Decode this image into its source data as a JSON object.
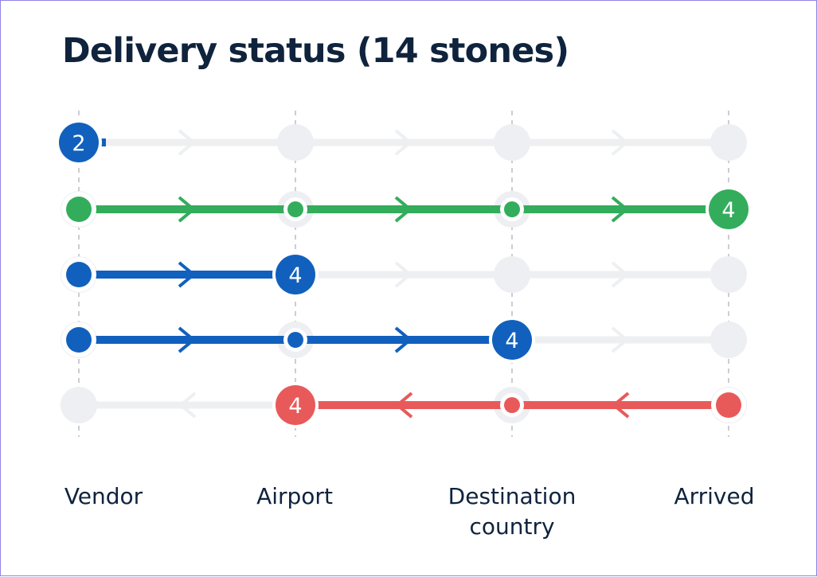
{
  "title": "Delivery status (14 stones)",
  "chart_data": {
    "type": "flow-status",
    "title": "Delivery status (14 stones)",
    "stages": [
      "Vendor",
      "Airport",
      "Destination country",
      "Arrived"
    ],
    "rows": [
      {
        "color": "blue",
        "direction": "forward",
        "from_stage": 0,
        "to_stage": 0,
        "count": 2
      },
      {
        "color": "green",
        "direction": "forward",
        "from_stage": 0,
        "to_stage": 3,
        "count": 4
      },
      {
        "color": "blue",
        "direction": "forward",
        "from_stage": 0,
        "to_stage": 1,
        "count": 4
      },
      {
        "color": "blue",
        "direction": "forward",
        "from_stage": 0,
        "to_stage": 2,
        "count": 4
      },
      {
        "color": "red",
        "direction": "backward",
        "from_stage": 3,
        "to_stage": 1,
        "count": 4
      }
    ]
  },
  "colors": {
    "blue": "#1160bd",
    "green": "#33ad5c",
    "red": "#e85a5a",
    "track": "#eeeff1",
    "empty_node": "#eeeff2",
    "divider": "#cdcdd2",
    "text": "#0f233d",
    "frame": "#8f86e6"
  }
}
